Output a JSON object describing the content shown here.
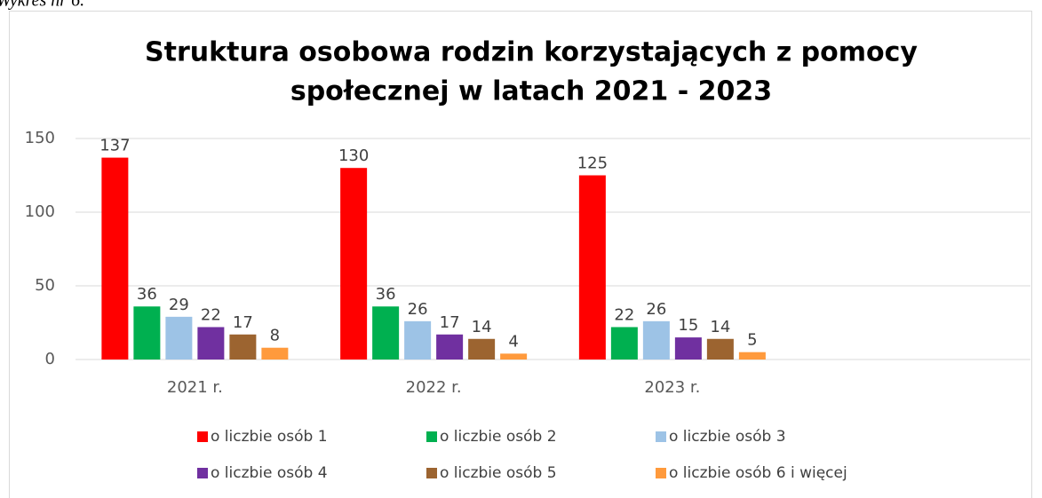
{
  "caption": "Wykres nr 6.",
  "chart_data": {
    "type": "bar",
    "title": [
      "Struktura osobowa rodzin korzystających z pomocy",
      "społecznej w latach 2021 - 2023"
    ],
    "categories": [
      "2021 r.",
      "2022 r.",
      "2023 r.",
      null
    ],
    "series": [
      {
        "name": "o liczbie osób 1",
        "color": "#ff0000",
        "values": [
          137,
          130,
          125,
          null
        ]
      },
      {
        "name": "o liczbie osób 2",
        "color": "#00b050",
        "values": [
          36,
          36,
          22,
          null
        ]
      },
      {
        "name": "o liczbie osób 3",
        "color": "#9dc3e6",
        "values": [
          29,
          26,
          26,
          null
        ]
      },
      {
        "name": "o liczbie osób 4",
        "color": "#7030a0",
        "values": [
          22,
          17,
          15,
          null
        ]
      },
      {
        "name": "o liczbie osób 5",
        "color": "#9c6430",
        "values": [
          17,
          14,
          14,
          null
        ]
      },
      {
        "name": "o liczbie osób 6 i więcej",
        "color": "#ff9a3c",
        "values": [
          8,
          4,
          5,
          null
        ]
      }
    ],
    "ylim": [
      0,
      150
    ],
    "yticks": [
      0,
      50,
      100,
      150
    ],
    "grid": true,
    "legend": "bottom"
  }
}
